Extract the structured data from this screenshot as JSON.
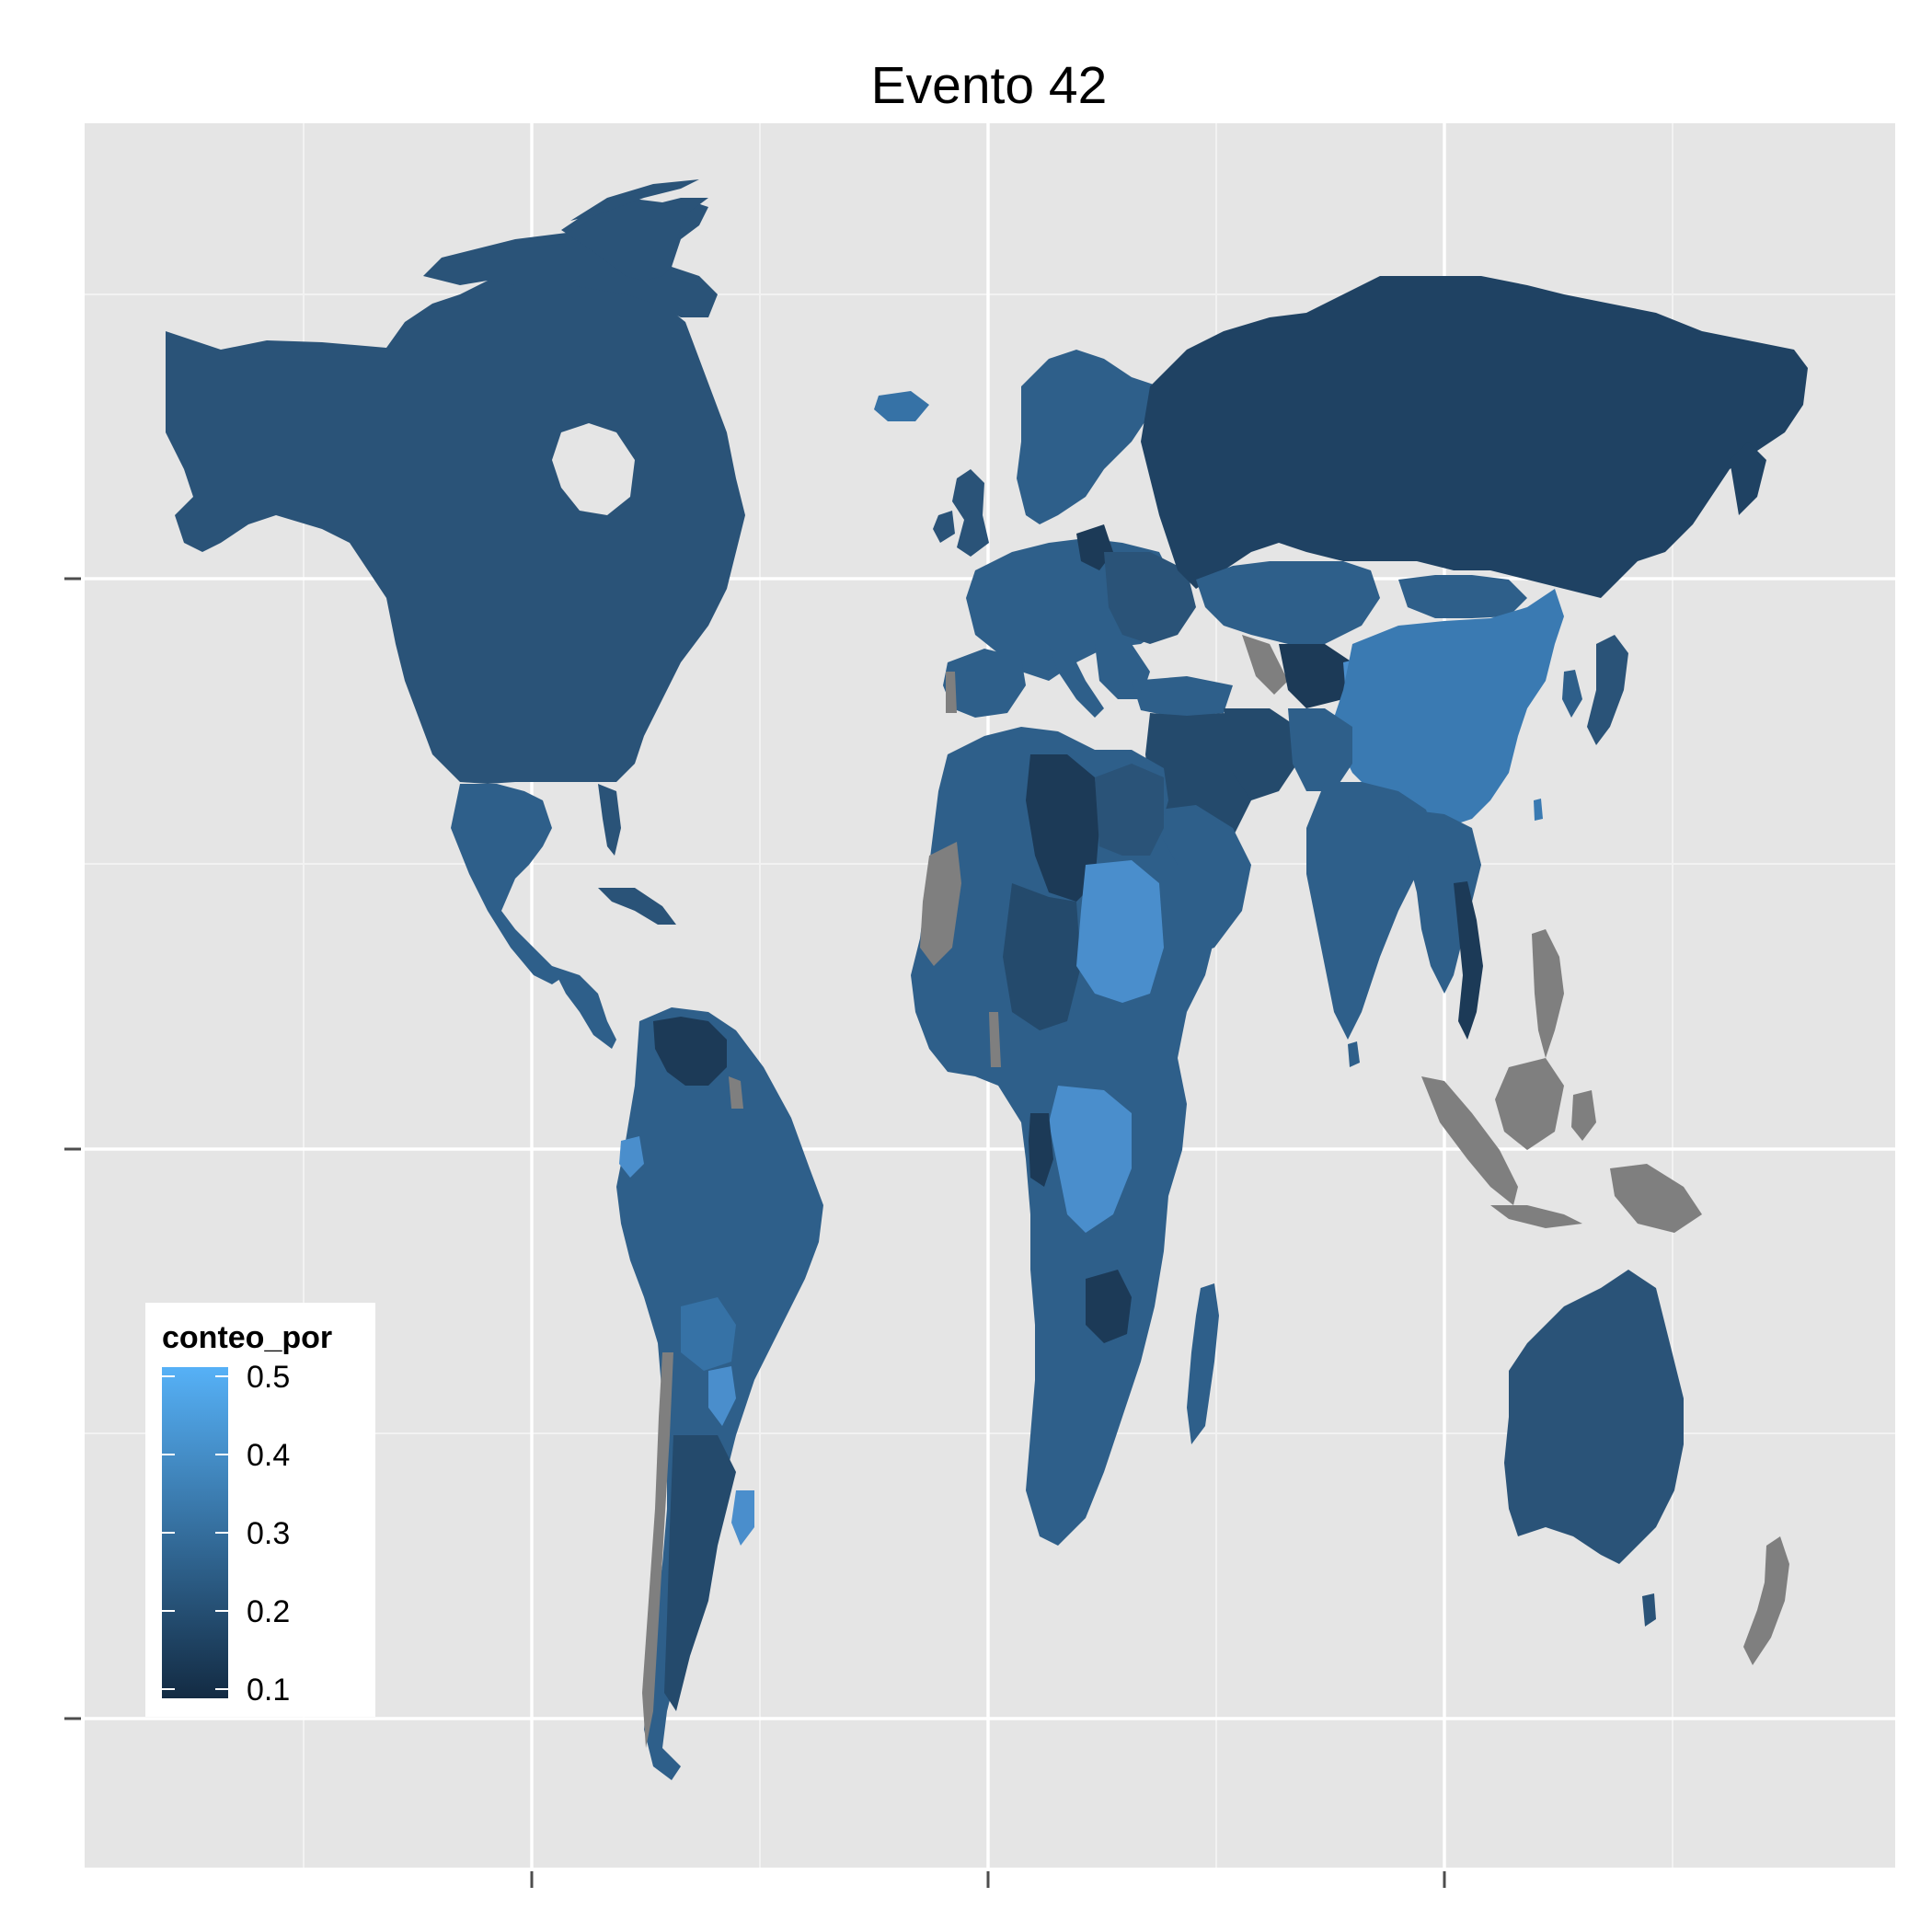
{
  "title": "Evento 42",
  "legend": {
    "title": "conteo_por",
    "ticks": [
      "0.5",
      "0.4",
      "0.3",
      "0.2",
      "0.1"
    ],
    "min": 0.1,
    "max": 0.5,
    "color_low": "#132B43",
    "color_high": "#56B1F7",
    "na_color": "#7F7F7F",
    "placement": "bottom-left"
  },
  "colors": {
    "panel_background": "#E5E5E5",
    "grid_major": "#FFFFFF",
    "grid_minor": "#F2F2F2",
    "land_default": "#2A5378"
  },
  "grid": true
}
